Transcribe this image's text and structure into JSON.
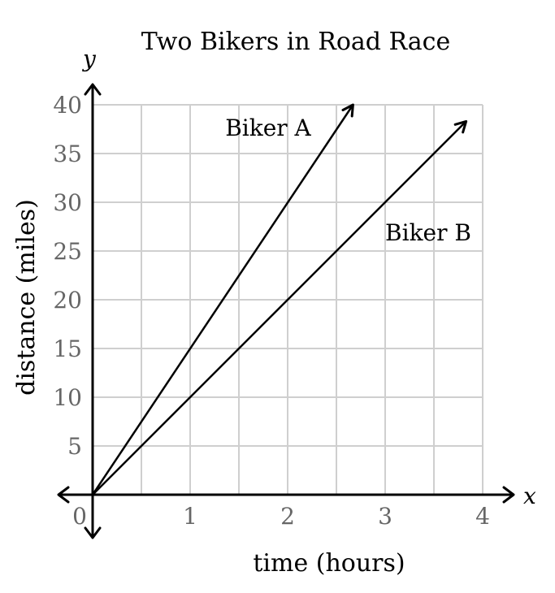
{
  "chart_data": {
    "type": "line",
    "title": "Two Bikers in Road Race",
    "xlabel": "time (hours)",
    "ylabel": "distance (miles)",
    "x_axis_var": "x",
    "y_axis_var": "y",
    "xlim": [
      0,
      4
    ],
    "ylim": [
      0,
      40
    ],
    "x_grid_step": 0.5,
    "y_grid_step": 5,
    "x_ticks": [
      {
        "value": 0,
        "label": "0"
      },
      {
        "value": 1,
        "label": "1"
      },
      {
        "value": 2,
        "label": "2"
      },
      {
        "value": 3,
        "label": "3"
      },
      {
        "value": 4,
        "label": "4"
      }
    ],
    "y_ticks": [
      {
        "value": 5,
        "label": "5"
      },
      {
        "value": 10,
        "label": "10"
      },
      {
        "value": 15,
        "label": "15"
      },
      {
        "value": 20,
        "label": "20"
      },
      {
        "value": 25,
        "label": "25"
      },
      {
        "value": 30,
        "label": "30"
      },
      {
        "value": 35,
        "label": "35"
      },
      {
        "value": 40,
        "label": "40"
      }
    ],
    "grid": true,
    "series": [
      {
        "name": "Biker A",
        "x": [
          0,
          2.67
        ],
        "y": [
          0,
          40
        ],
        "arrow_end": true
      },
      {
        "name": "Biker B",
        "x": [
          0,
          3.83
        ],
        "y": [
          0,
          38.3
        ],
        "arrow_end": true
      }
    ]
  }
}
